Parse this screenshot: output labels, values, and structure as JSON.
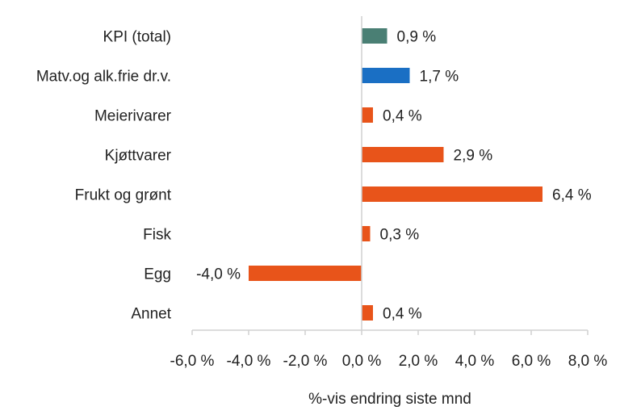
{
  "chart_data": {
    "type": "bar",
    "orientation": "horizontal",
    "categories": [
      "KPI (total)",
      "Matv.og alk.frie dr.v.",
      "Meierivarer",
      "Kjøttvarer",
      "Frukt og grønt",
      "Fisk",
      "Egg",
      "Annet"
    ],
    "values": [
      0.9,
      1.7,
      0.4,
      2.9,
      6.4,
      0.3,
      -4.0,
      0.4
    ],
    "value_labels": [
      "0,9 %",
      "1,7 %",
      "0,4 %",
      "2,9 %",
      "6,4 %",
      "0,3 %",
      "-4,0 %",
      "0,4 %"
    ],
    "bar_colors": [
      "#4a7f74",
      "#1a6fc4",
      "#e8541a",
      "#e8541a",
      "#e8541a",
      "#e8541a",
      "#e8541a",
      "#e8541a"
    ],
    "xlim": [
      -6.0,
      8.0
    ],
    "xticks": [
      -6,
      -4,
      -2,
      0,
      2,
      4,
      6,
      8
    ],
    "xtick_labels": [
      "-6,0 %",
      "-4,0 %",
      "-2,0 %",
      "0,0 %",
      "2,0 %",
      "4,0 %",
      "6,0 %",
      "8,0 %"
    ],
    "xlabel": "%-vis endring siste mnd",
    "grid": false,
    "legend": "none"
  }
}
